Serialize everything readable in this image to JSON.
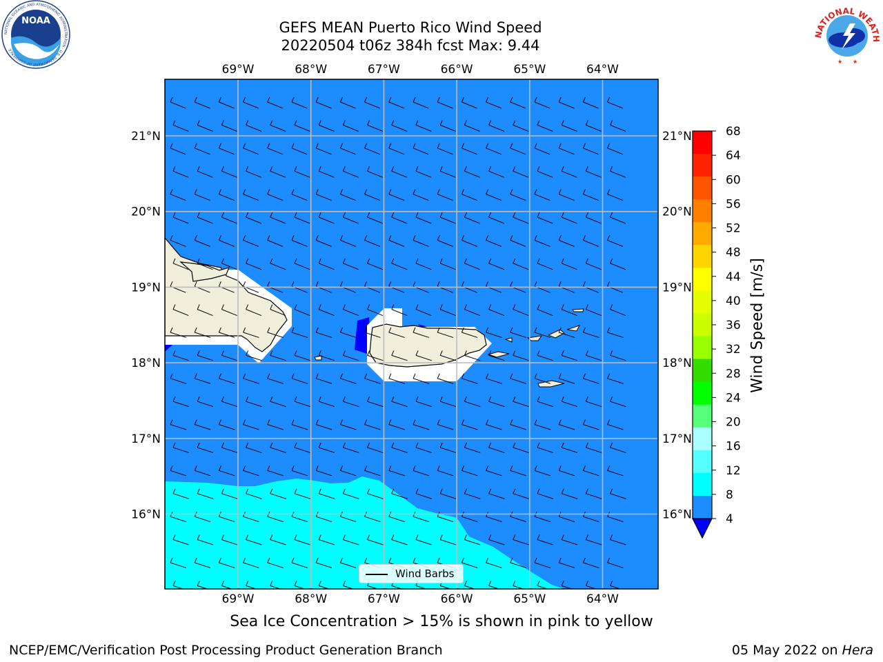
{
  "title": {
    "line1": "GEFS MEAN Puerto Rico Wind Speed",
    "line2": "20220504 t06z 384h fcst   Max: 9.44"
  },
  "logos": {
    "noaa": {
      "text": "NOAA",
      "ring_text": "NATIONAL OCEANIC AND ATMOSPHERIC ADMINISTRATION · U.S. DEPARTMENT OF COMMERCE"
    },
    "nws": {
      "ring_text": "NATIONAL WEATHER SERVICE"
    }
  },
  "map": {
    "lon_range": [
      -69.99,
      -63.24
    ],
    "lat_range": [
      15.02,
      21.73
    ],
    "lon_ticks": [
      "69°W",
      "68°W",
      "67°W",
      "66°W",
      "65°W",
      "64°W"
    ],
    "lat_ticks": [
      "21°N",
      "20°N",
      "19°N",
      "18°N",
      "17°N",
      "16°N"
    ],
    "gridlines": true,
    "background_color": "#1c8cff",
    "zone_colors": {
      "4-8": "#1c8cff",
      "8-12": "#00ffff",
      "below-4": "#0000ff"
    },
    "legend": {
      "label": "Wind Barbs"
    },
    "wind_direction": "east-southeast"
  },
  "colorbar": {
    "label": "Wind Speed [m/s]",
    "ticks": [
      "68",
      "64",
      "60",
      "56",
      "52",
      "48",
      "44",
      "40",
      "36",
      "32",
      "28",
      "24",
      "20",
      "16",
      "12",
      "8",
      "4"
    ],
    "colors": [
      "#ff0000",
      "#ff2400",
      "#ff5500",
      "#ff8000",
      "#ffaa00",
      "#ffd500",
      "#ffff00",
      "#e5ff00",
      "#cbff00",
      "#98ff00",
      "#33dd00",
      "#00ff00",
      "#55ff7a",
      "#aaffff",
      "#55ffff",
      "#00ffff",
      "#1c8cff"
    ],
    "extend_color": "#0000ff"
  },
  "caption": "Sea Ice Concentration > 15% is shown in pink to yellow",
  "footer": {
    "left": "NCEP/EMC/Verification Post Processing Product Generation Branch",
    "date": "05 May 2022 on",
    "machine": "Hera"
  }
}
